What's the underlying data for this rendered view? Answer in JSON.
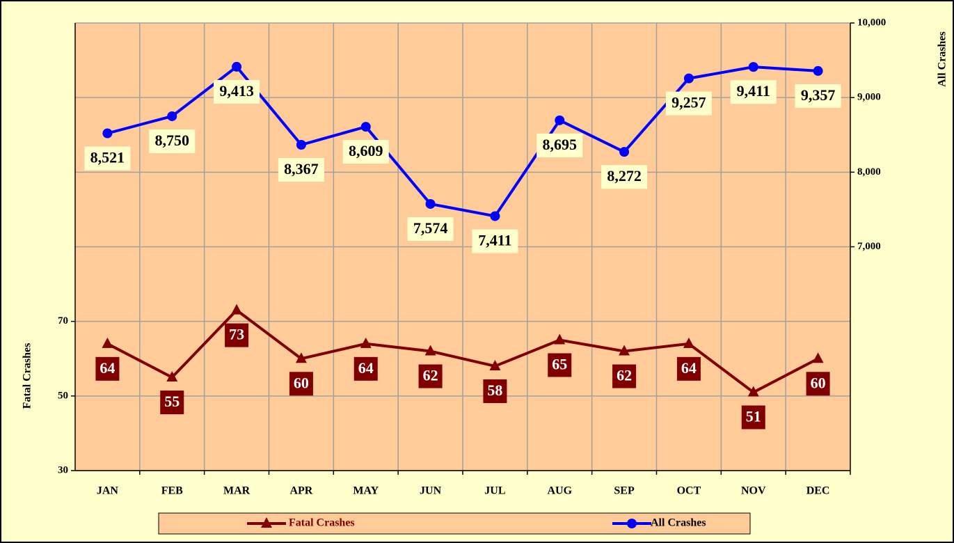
{
  "chart_data": {
    "type": "line",
    "categories": [
      "JAN",
      "FEB",
      "MAR",
      "APR",
      "MAY",
      "JUN",
      "JUL",
      "AUG",
      "SEP",
      "OCT",
      "NOV",
      "DEC"
    ],
    "series": [
      {
        "name": "Fatal Crashes",
        "color": "#800000",
        "axis": "y",
        "marker": "triangle",
        "values": [
          64,
          55,
          73,
          60,
          64,
          62,
          58,
          65,
          62,
          64,
          51,
          60
        ]
      },
      {
        "name": "All Crashes",
        "color": "#0000ff",
        "axis": "y2",
        "marker": "circle",
        "values": [
          8521,
          8750,
          9413,
          8367,
          8609,
          7574,
          7411,
          8695,
          8272,
          9257,
          9411,
          9357
        ],
        "value_labels": [
          "8,521",
          "8,750",
          "9,413",
          "8,367",
          "8,609",
          "7,574",
          "7,411",
          "8,695",
          "8,272",
          "9,257",
          "9,411",
          "9,357"
        ]
      }
    ],
    "ylabel": "Fatal Crashes",
    "y2label": "All Crashes",
    "ylim": [
      30,
      150
    ],
    "yticks": [
      30,
      50,
      70
    ],
    "y2lim": [
      4000,
      10000
    ],
    "y2ticks": [
      {
        "value": 7000,
        "label": "7,000"
      },
      {
        "value": 8000,
        "label": "8,000"
      },
      {
        "value": 9000,
        "label": "9,000"
      },
      {
        "value": 10000,
        "label": "10,000"
      }
    ],
    "grid": true,
    "legend": "bottom"
  }
}
